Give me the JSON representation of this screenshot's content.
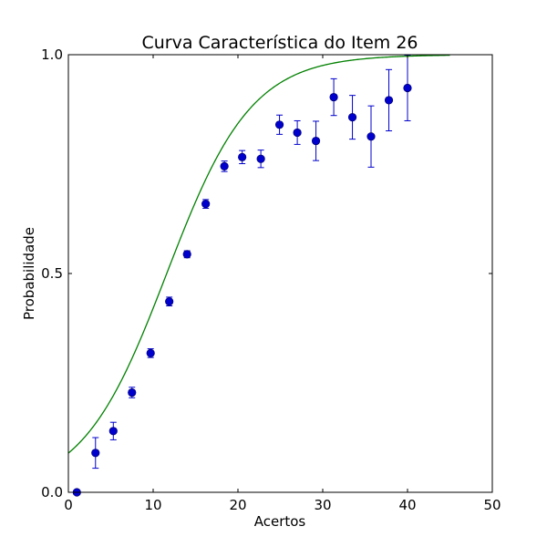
{
  "chart_data": {
    "type": "scatter",
    "title": "Curva Característica do Item 26",
    "xlabel": "Acertos",
    "ylabel": "Probabilidade",
    "xlim": [
      0,
      50
    ],
    "ylim": [
      0.0,
      1.0
    ],
    "xticks": [
      0,
      10,
      20,
      30,
      40,
      50
    ],
    "xtick_labels": [
      "0",
      "10",
      "20",
      "30",
      "40",
      "50"
    ],
    "yticks": [
      0.0,
      0.5,
      1.0
    ],
    "ytick_labels": [
      "0.0",
      "0.5",
      "1.0"
    ],
    "grid": false,
    "legend": "none",
    "series": [
      {
        "kind": "errorbar-points",
        "color": "#0000cc",
        "points": [
          {
            "x": 1.0,
            "y": 0.0,
            "err": 0.0
          },
          {
            "x": 3.2,
            "y": 0.09,
            "err": 0.035
          },
          {
            "x": 5.3,
            "y": 0.14,
            "err": 0.02
          },
          {
            "x": 7.5,
            "y": 0.228,
            "err": 0.012
          },
          {
            "x": 9.7,
            "y": 0.318,
            "err": 0.01
          },
          {
            "x": 11.9,
            "y": 0.436,
            "err": 0.01
          },
          {
            "x": 14.0,
            "y": 0.544,
            "err": 0.008
          },
          {
            "x": 16.2,
            "y": 0.659,
            "err": 0.01
          },
          {
            "x": 18.4,
            "y": 0.745,
            "err": 0.012
          },
          {
            "x": 20.5,
            "y": 0.766,
            "err": 0.015
          },
          {
            "x": 22.7,
            "y": 0.762,
            "err": 0.02
          },
          {
            "x": 24.9,
            "y": 0.84,
            "err": 0.022
          },
          {
            "x": 27.0,
            "y": 0.822,
            "err": 0.027
          },
          {
            "x": 29.2,
            "y": 0.803,
            "err": 0.045
          },
          {
            "x": 31.3,
            "y": 0.903,
            "err": 0.042
          },
          {
            "x": 33.5,
            "y": 0.857,
            "err": 0.05
          },
          {
            "x": 35.7,
            "y": 0.813,
            "err": 0.07
          },
          {
            "x": 37.8,
            "y": 0.896,
            "err": 0.07
          },
          {
            "x": 40.0,
            "y": 0.924,
            "err": 0.075
          }
        ]
      },
      {
        "kind": "logistic-curve",
        "color": "#008000",
        "model": {
          "midpoint": 11.6,
          "slope": 0.2,
          "x_start": 0,
          "x_end": 45
        }
      }
    ]
  }
}
